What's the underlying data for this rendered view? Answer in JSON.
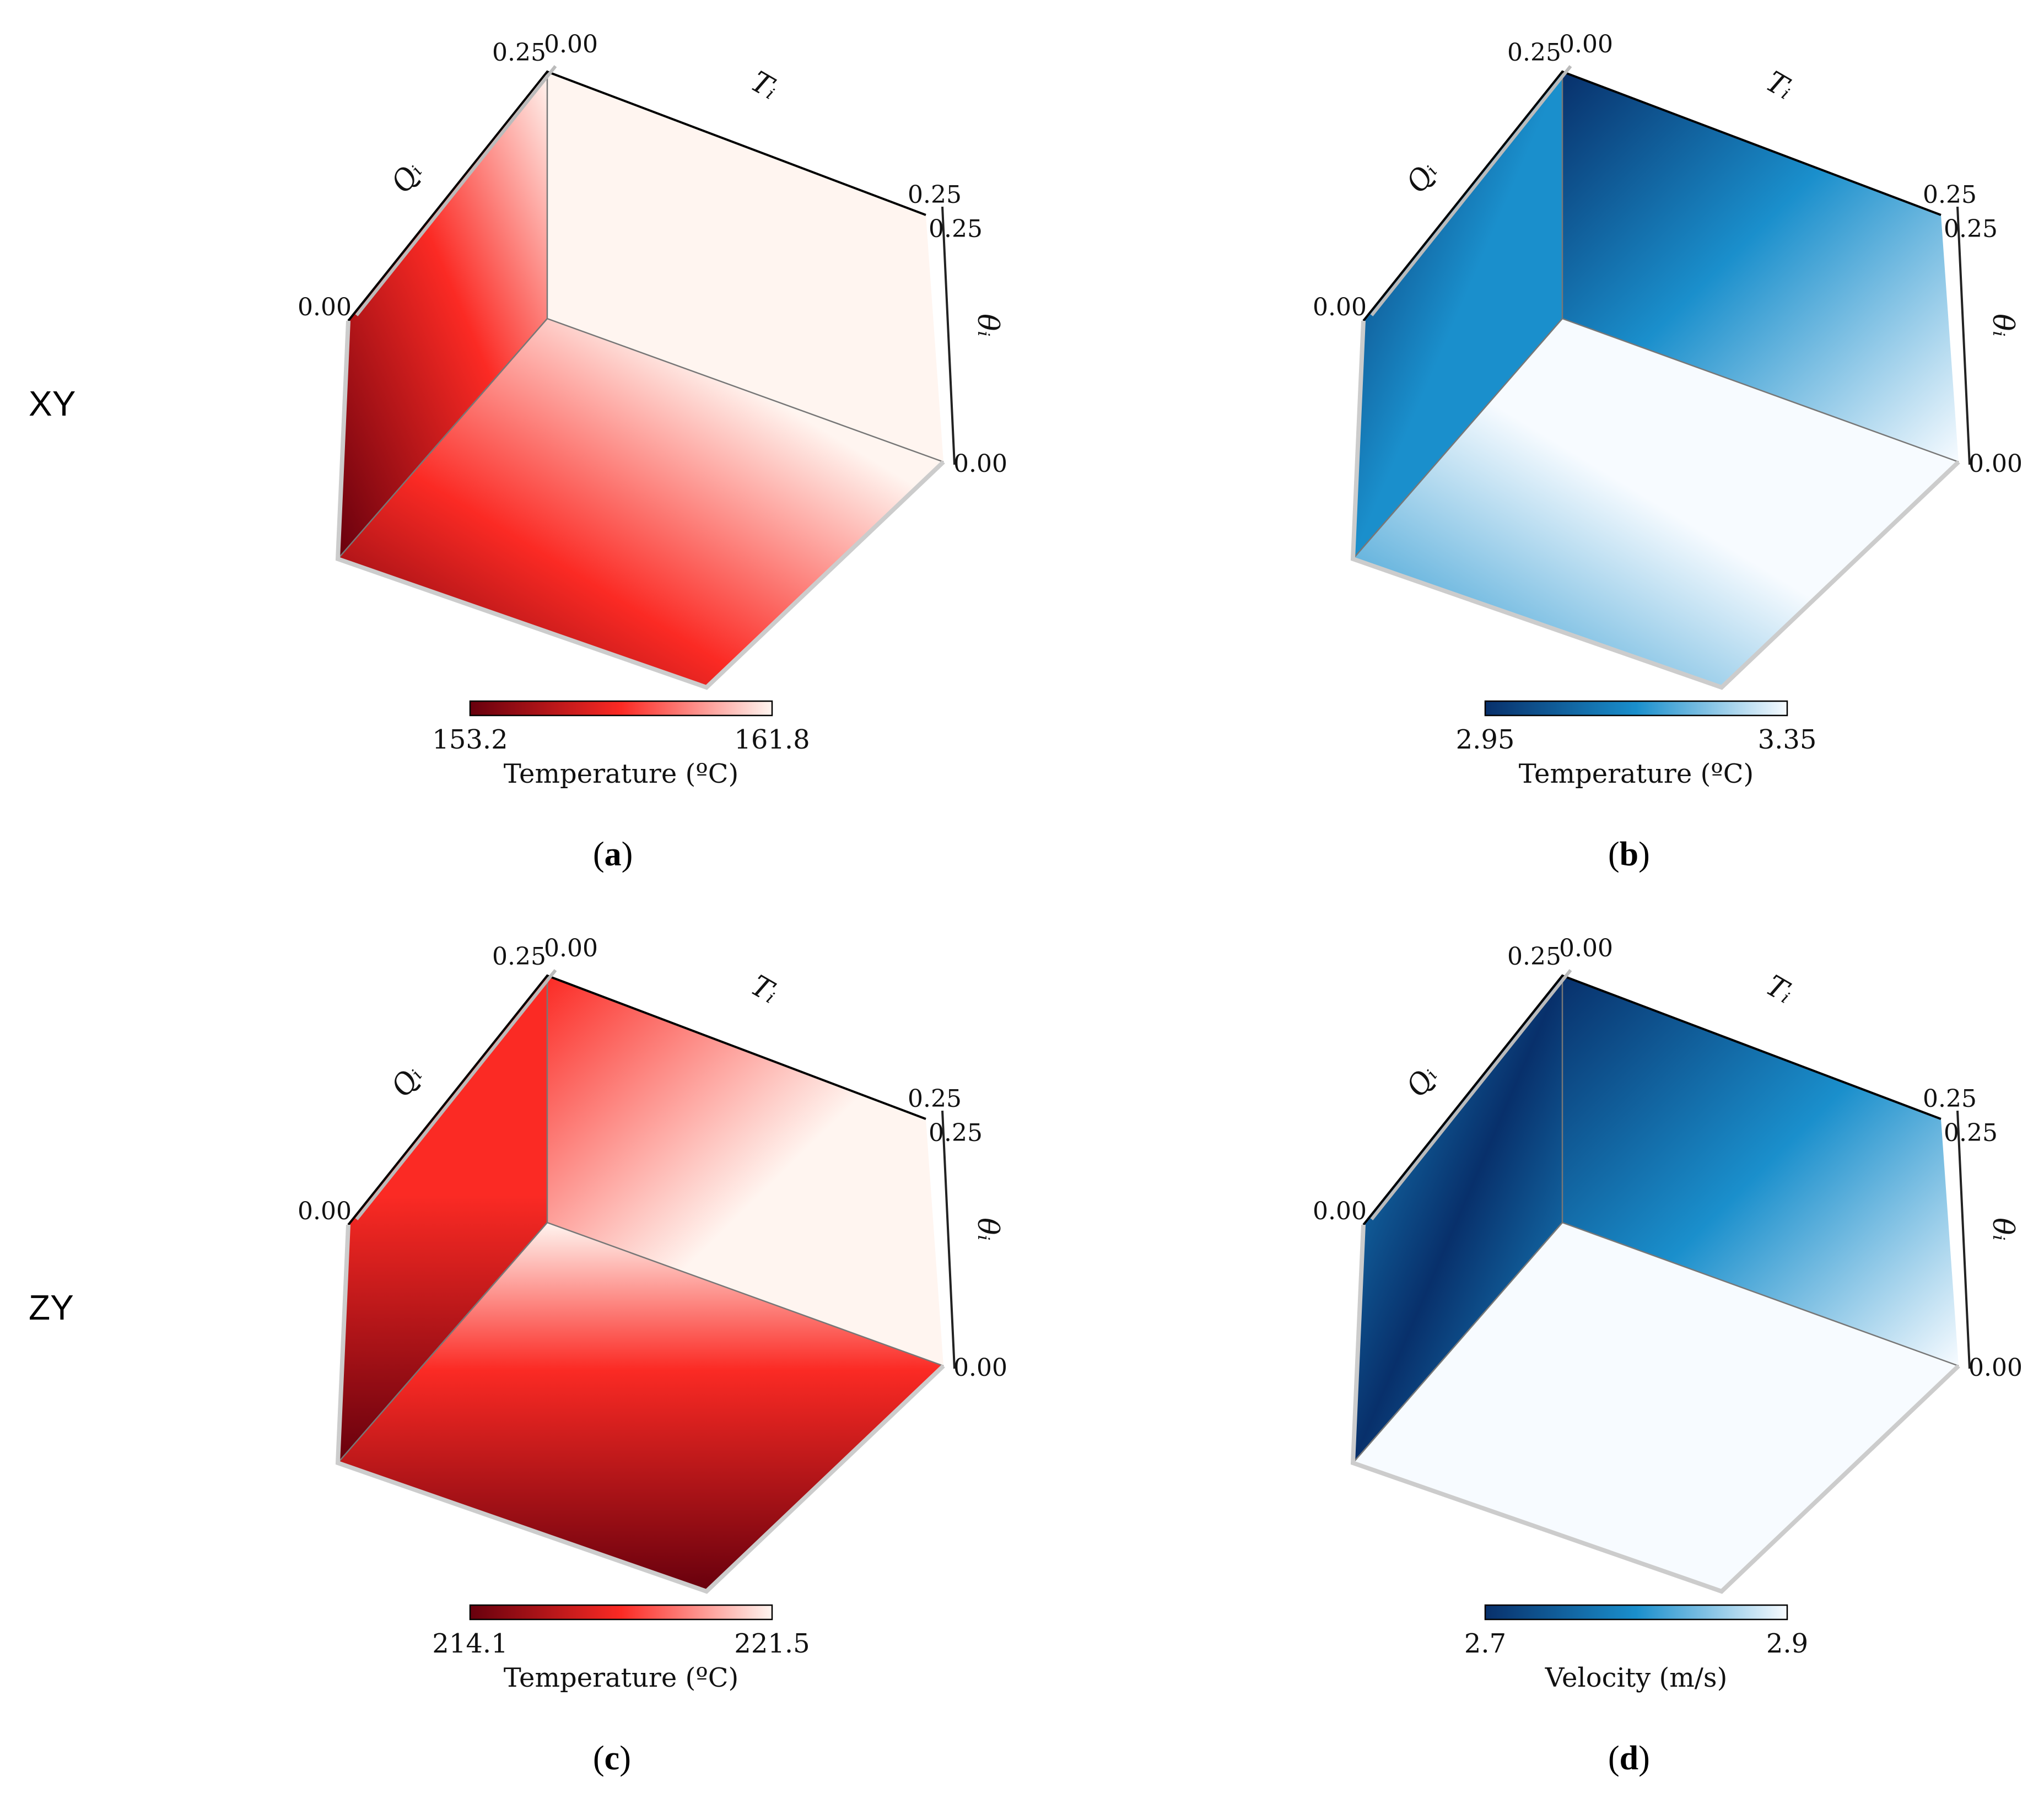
{
  "row_labels": [
    "XY",
    "ZY"
  ],
  "chart_data": [
    {
      "type": "heatmap",
      "panel": "a",
      "caption": "a",
      "colormap": "Reds",
      "axes": {
        "x": {
          "label": "T_i",
          "range": [
            0.0,
            0.25
          ],
          "ticks": [
            "0.00",
            "0.25"
          ]
        },
        "y": {
          "label": "Q_i",
          "range": [
            0.0,
            0.25
          ],
          "ticks": [
            "0.00",
            "0.25"
          ]
        },
        "z": {
          "label": "θ_i",
          "range": [
            0.0,
            0.25
          ],
          "ticks": [
            "0.00",
            "0.25"
          ]
        }
      },
      "colorbar": {
        "min": "153.2",
        "max": "161.8",
        "label": "Temperature (ºC)"
      },
      "colors": {
        "low": "#67000d",
        "mid": "#fb2a24",
        "high": "#fff5f0"
      }
    },
    {
      "type": "heatmap",
      "panel": "b",
      "caption": "b",
      "colormap": "Blues",
      "axes": {
        "x": {
          "label": "T_i",
          "range": [
            0.0,
            0.25
          ],
          "ticks": [
            "0.00",
            "0.25"
          ]
        },
        "y": {
          "label": "Q_i",
          "range": [
            0.0,
            0.25
          ],
          "ticks": [
            "0.00",
            "0.25"
          ]
        },
        "z": {
          "label": "θ_i",
          "range": [
            0.0,
            0.25
          ],
          "ticks": [
            "0.00",
            "0.25"
          ]
        }
      },
      "colorbar": {
        "min": "2.95",
        "max": "3.35",
        "label": "Temperature (ºC)"
      },
      "colors": {
        "low": "#08306b",
        "mid": "#1a8fcc",
        "high": "#f7fbff"
      }
    },
    {
      "type": "heatmap",
      "panel": "c",
      "caption": "c",
      "colormap": "Reds",
      "axes": {
        "x": {
          "label": "T_i",
          "range": [
            0.0,
            0.25
          ],
          "ticks": [
            "0.00",
            "0.25"
          ]
        },
        "y": {
          "label": "Q_i",
          "range": [
            0.0,
            0.25
          ],
          "ticks": [
            "0.00",
            "0.25"
          ]
        },
        "z": {
          "label": "θ_i",
          "range": [
            0.0,
            0.25
          ],
          "ticks": [
            "0.00",
            "0.25"
          ]
        }
      },
      "colorbar": {
        "min": "214.1",
        "max": "221.5",
        "label": "Temperature (ºC)"
      },
      "colors": {
        "low": "#67000d",
        "mid": "#fb2a24",
        "high": "#fff5f0"
      }
    },
    {
      "type": "heatmap",
      "panel": "d",
      "caption": "d",
      "colormap": "Blues",
      "axes": {
        "x": {
          "label": "T_i",
          "range": [
            0.0,
            0.25
          ],
          "ticks": [
            "0.00",
            "0.25"
          ]
        },
        "y": {
          "label": "Q_i",
          "range": [
            0.0,
            0.25
          ],
          "ticks": [
            "0.00",
            "0.25"
          ]
        },
        "z": {
          "label": "θ_i",
          "range": [
            0.0,
            0.25
          ],
          "ticks": [
            "0.00",
            "0.25"
          ]
        }
      },
      "colorbar": {
        "min": "2.7",
        "max": "2.9",
        "label": "Velocity (m/s)"
      },
      "colors": {
        "low": "#08306b",
        "mid": "#1a8fcc",
        "high": "#f7fbff"
      }
    }
  ]
}
